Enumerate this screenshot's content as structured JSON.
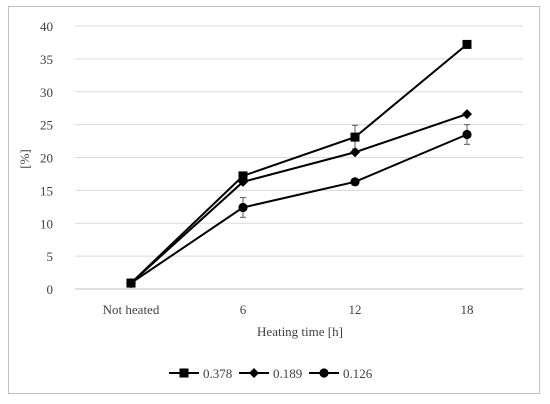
{
  "chart_data": {
    "type": "line",
    "title": "",
    "xlabel": "Heating time [h]",
    "ylabel": "[%]",
    "categories": [
      "Not heated",
      "6",
      "12",
      "18"
    ],
    "ylim": [
      0,
      40
    ],
    "yticks": [
      "0",
      "5",
      "10",
      "15",
      "20",
      "25",
      "30",
      "35",
      "40"
    ],
    "grid": "horizontal",
    "legend_position": "bottom",
    "series": [
      {
        "name": "0.378",
        "marker": "square",
        "values": [
          0.9,
          17.2,
          23.1,
          37.2
        ],
        "errors": [
          0,
          0.0,
          1.8,
          0
        ]
      },
      {
        "name": "0.189",
        "marker": "diamond",
        "values": [
          0.9,
          16.3,
          20.8,
          26.6
        ],
        "errors": [
          0,
          0,
          0,
          0
        ]
      },
      {
        "name": "0.126",
        "marker": "circle",
        "values": [
          0.9,
          12.4,
          16.3,
          23.5
        ],
        "errors": [
          0,
          1.5,
          0,
          1.5
        ]
      }
    ],
    "colors": {
      "series": "#000000",
      "grid": "#d9d9d9",
      "text": "#404040",
      "axis": "#bfbfbf"
    }
  }
}
